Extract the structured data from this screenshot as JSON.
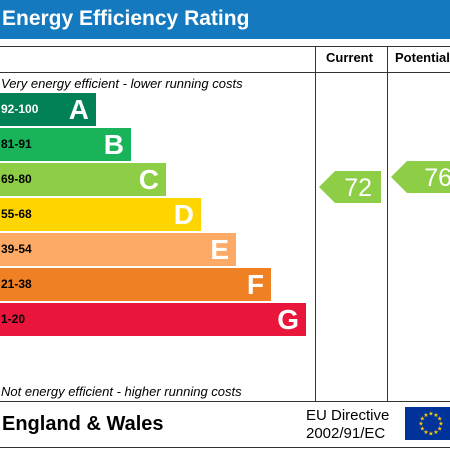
{
  "title": "Energy Efficiency Rating",
  "columns": {
    "current": "Current",
    "potential": "Potential"
  },
  "notes": {
    "top": "Very energy efficient - lower running costs",
    "bottom": "Not energy efficient - higher running costs"
  },
  "colors": {
    "header": "#1479bf",
    "A": "#008054",
    "B": "#19b459",
    "C": "#8dce46",
    "D": "#ffd500",
    "E": "#fcaa65",
    "F": "#ef8023",
    "G": "#e9153b"
  },
  "chart_data": {
    "type": "bar",
    "bands": [
      {
        "range": "92-100",
        "letter": "A"
      },
      {
        "range": "81-91",
        "letter": "B"
      },
      {
        "range": "69-80",
        "letter": "C"
      },
      {
        "range": "55-68",
        "letter": "D"
      },
      {
        "range": "39-54",
        "letter": "E"
      },
      {
        "range": "21-38",
        "letter": "F"
      },
      {
        "range": "1-20",
        "letter": "G"
      }
    ],
    "current": {
      "value": "72",
      "band": "C"
    },
    "potential": {
      "value": "76",
      "band": "C"
    }
  },
  "footer": {
    "region": "England & Wales",
    "directive_line1": "EU Directive",
    "directive_line2": "2002/91/EC",
    "flag_icon": "eu-flag-icon"
  }
}
